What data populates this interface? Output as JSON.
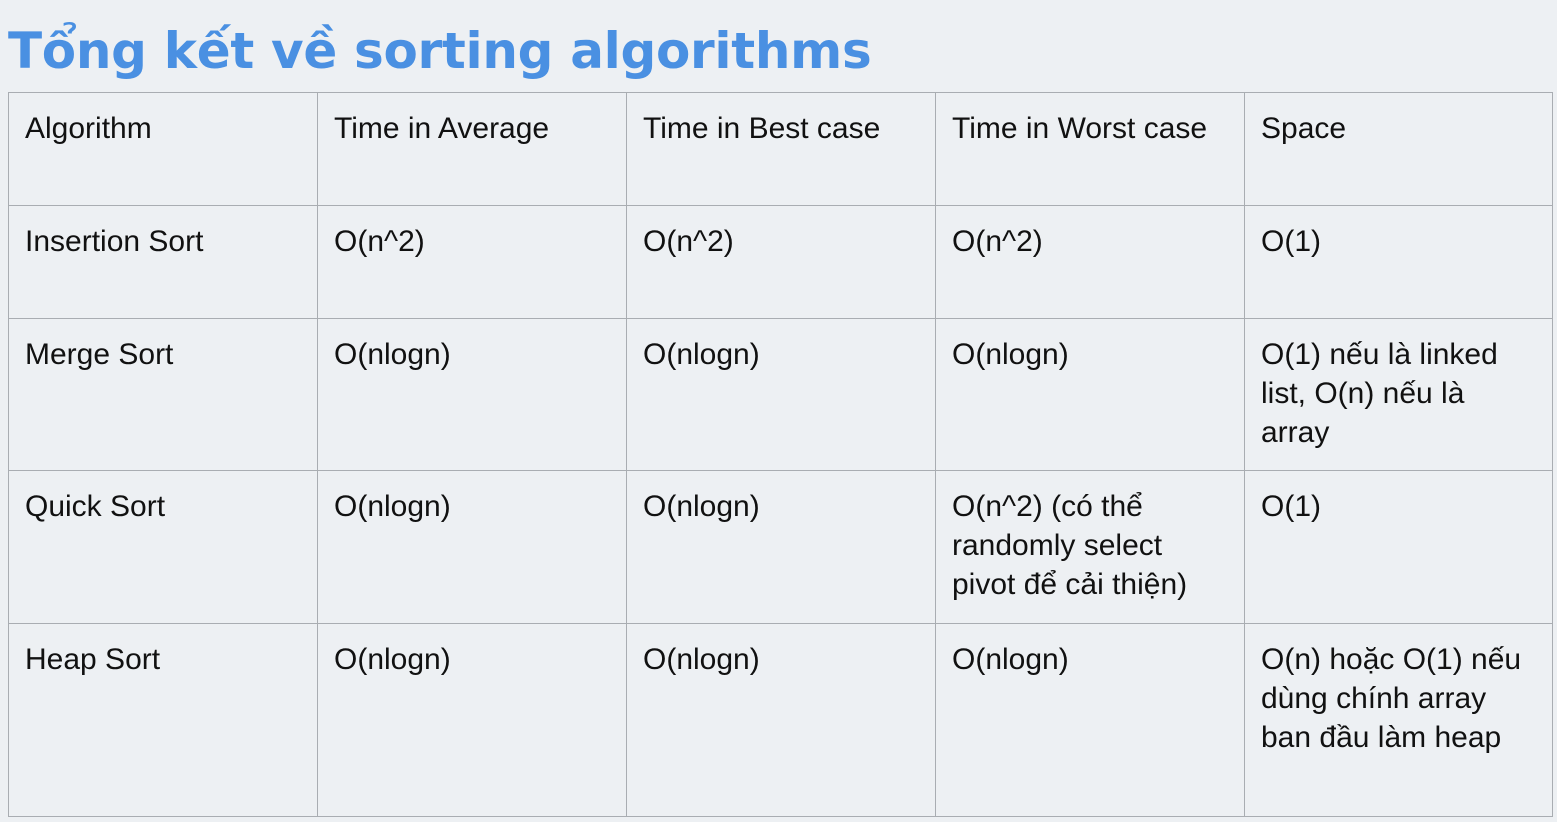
{
  "slide": {
    "title": "Tổng kết về sorting algorithms"
  },
  "table": {
    "headers": [
      "Algorithm",
      "Time in Average",
      "Time in Best case",
      "Time in Worst case",
      "Space"
    ],
    "rows": [
      [
        "Insertion Sort",
        "O(n^2)",
        "O(n^2)",
        "O(n^2)",
        "O(1)"
      ],
      [
        "Merge Sort",
        "O(nlogn)",
        "O(nlogn)",
        "O(nlogn)",
        "O(1) nếu là linked list, O(n) nếu là array"
      ],
      [
        "Quick Sort",
        "O(nlogn)",
        "O(nlogn)",
        "O(n^2) (có thể randomly select pivot để cải thiện)",
        "O(1)"
      ],
      [
        "Heap Sort",
        "O(nlogn)",
        "O(nlogn)",
        "O(nlogn)",
        "O(n) hoặc O(1) nếu dùng chính array ban đầu làm heap"
      ]
    ]
  }
}
